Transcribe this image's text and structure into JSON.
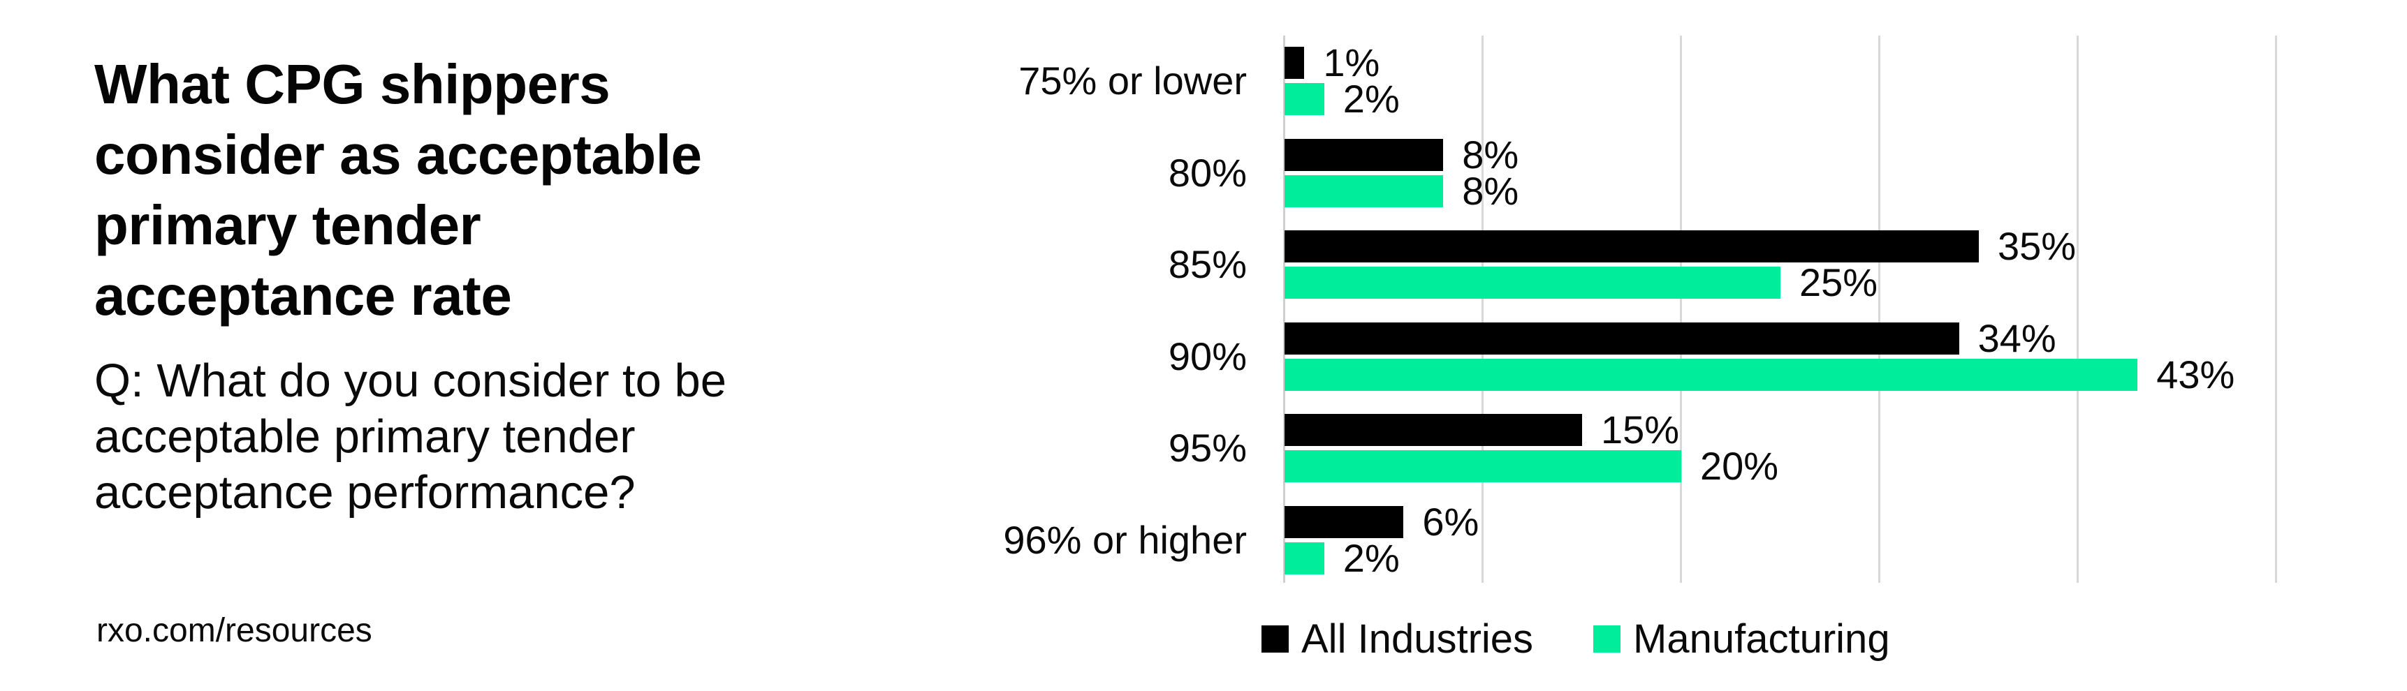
{
  "left_panel": {
    "title": "What CPG shippers\nconsider as acceptable\nprimary tender\nacceptance rate",
    "question": "Q: What do you consider to be\nacceptable primary tender\nacceptance performance?",
    "source": "rxo.com/resources"
  },
  "chart_data": {
    "type": "bar",
    "orientation": "horizontal",
    "title": "",
    "categories": [
      "75% or lower",
      "80%",
      "85%",
      "90%",
      "95%",
      "96% or higher"
    ],
    "series": [
      {
        "name": "All Industries",
        "color": "#000000",
        "values": [
          1,
          8,
          35,
          34,
          15,
          6
        ]
      },
      {
        "name": "Manufacturing",
        "color": "#00ee9b",
        "values": [
          2,
          8,
          25,
          43,
          20,
          2
        ]
      }
    ],
    "value_suffix": "%",
    "xlim": [
      0,
      50
    ],
    "gridline_interval": 10,
    "grid": true,
    "data_labels": true,
    "legend_position": "bottom"
  },
  "style": {
    "gridline_color": "#d8d8d8",
    "axis_color": "#cfcfcf",
    "background": "#ffffff",
    "text_color": "#0a0a0a"
  }
}
